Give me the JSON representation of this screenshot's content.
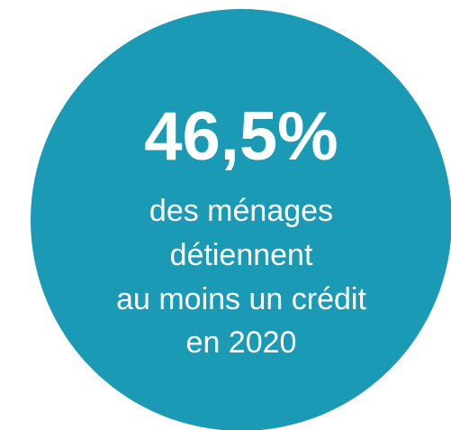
{
  "headline": "46,5%",
  "lines": [
    "des ménages",
    "détiennent",
    "au moins un crédit",
    "en 2020"
  ]
}
